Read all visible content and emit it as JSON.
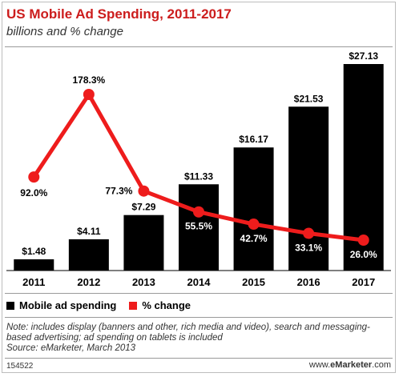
{
  "chart_data": {
    "type": "bar",
    "title": "US Mobile Ad Spending, 2011-2017",
    "subtitle": "billions and % change",
    "categories": [
      "2011",
      "2012",
      "2013",
      "2014",
      "2015",
      "2016",
      "2017"
    ],
    "series": [
      {
        "name": "Mobile ad spending",
        "type": "bar",
        "values": [
          1.48,
          4.11,
          7.29,
          11.33,
          16.17,
          21.53,
          27.13
        ],
        "labels": [
          "$1.48",
          "$4.11",
          "$7.29",
          "$11.33",
          "$16.17",
          "$21.53",
          "$27.13"
        ],
        "color": "#000000"
      },
      {
        "name": "% change",
        "type": "line",
        "values": [
          92.0,
          178.3,
          77.3,
          55.5,
          42.7,
          33.1,
          26.0
        ],
        "labels": [
          "92.0%",
          "178.3%",
          "77.3%",
          "55.5%",
          "42.7%",
          "33.1%",
          "26.0%"
        ],
        "color": "#ee1c1c"
      }
    ],
    "legend_position": "bottom-left",
    "grid": false
  },
  "legend": {
    "bars_label": "Mobile ad spending",
    "line_label": "% change"
  },
  "note": "Note: includes display (banners and other, rich media and video), search and messaging-based advertising; ad spending on tablets is included",
  "source": "Source: eMarketer, March 2013",
  "footer": {
    "chart_id": "154522",
    "brand_prefix": "www.",
    "brand_name": "eMarketer",
    "brand_suffix": ".com"
  }
}
